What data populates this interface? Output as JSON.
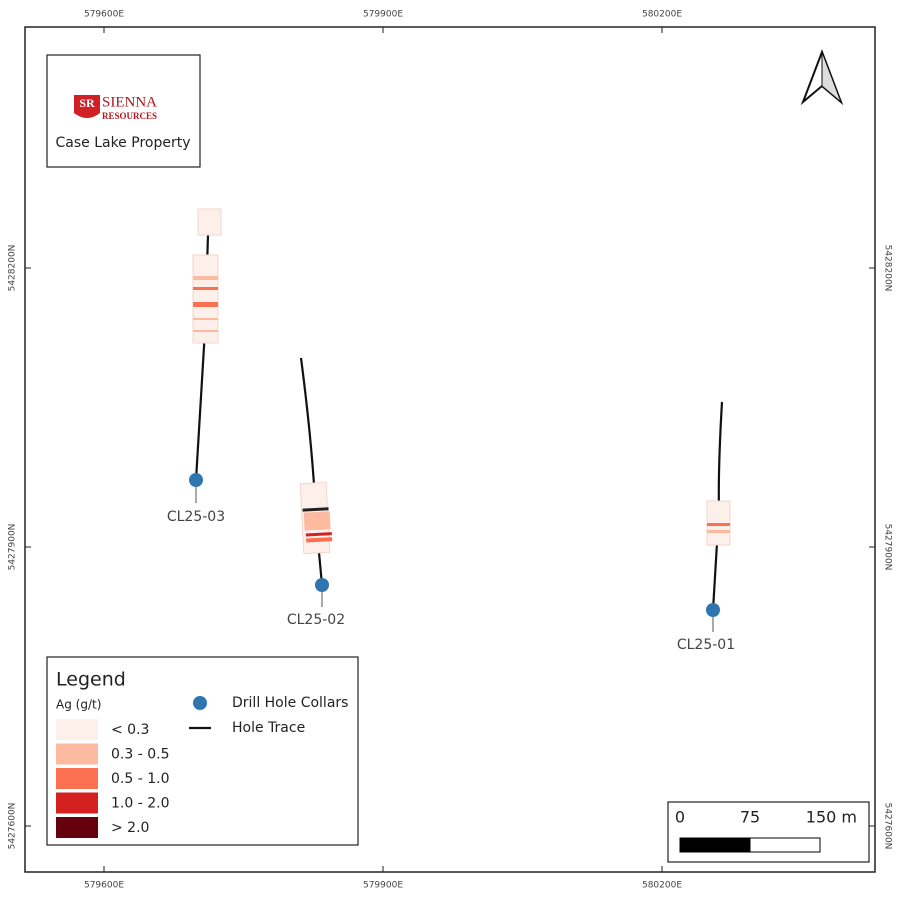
{
  "logo": {
    "initials": "SR",
    "name": "SIENNA",
    "sub": "RESOURCES"
  },
  "title": "Case Lake Property",
  "grid": {
    "x_labels": [
      "579600E",
      "579900E",
      "580200E"
    ],
    "y_labels": [
      "5428200N",
      "5427900N",
      "5427600N"
    ]
  },
  "holes": [
    {
      "label": "CL25-03"
    },
    {
      "label": "CL25-02"
    },
    {
      "label": "CL25-01"
    }
  ],
  "legend": {
    "title": "Legend",
    "field": "Ag (g/t)",
    "classes": [
      {
        "label": "< 0.3",
        "color": "#fdf0eb"
      },
      {
        "label": "0.3 - 0.5",
        "color": "#fcbba1"
      },
      {
        "label": "0.5 - 1.0",
        "color": "#fb7050"
      },
      {
        "label": "1.0 - 2.0",
        "color": "#d42020"
      },
      {
        "label": "> 2.0",
        "color": "#67000d"
      }
    ],
    "collars": "Drill Hole Collars",
    "trace": "Hole Trace"
  },
  "scale_bar": {
    "labels": [
      "0",
      "75",
      "150 m"
    ]
  }
}
